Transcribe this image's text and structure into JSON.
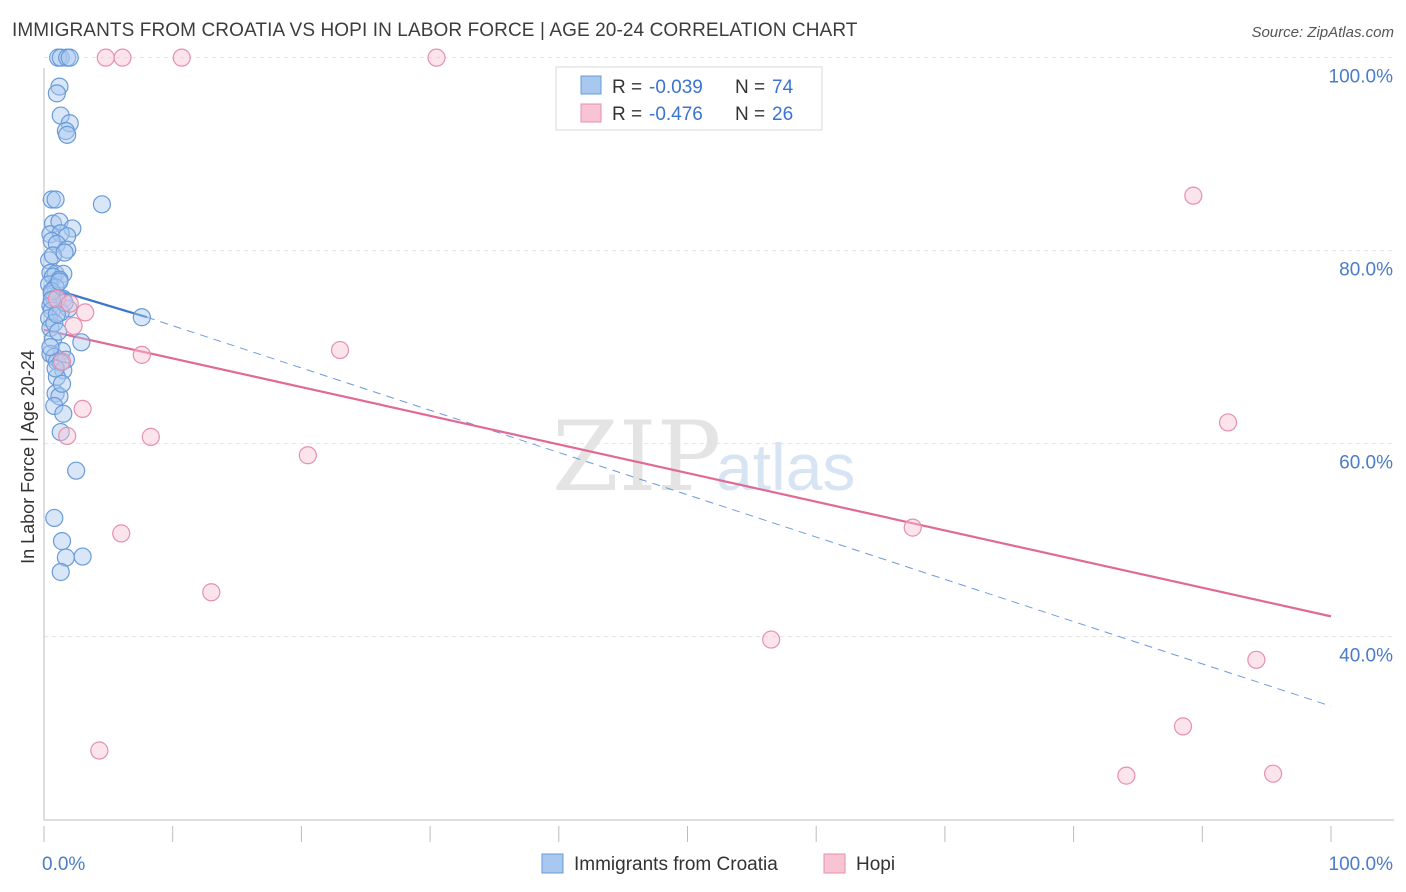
{
  "title": "IMMIGRANTS FROM CROATIA VS HOPI IN LABOR FORCE | AGE 20-24 CORRELATION CHART",
  "source": "Source: ZipAtlas.com",
  "watermark": {
    "zip": "ZIP",
    "atlas": "atlas"
  },
  "legend": {
    "r_label": "R =",
    "n_label": "N =",
    "rows": [
      {
        "r": "-0.039",
        "n": "74",
        "color": "#a8c8f0",
        "stroke": "#6a9bd8"
      },
      {
        "r": "-0.476",
        "n": "26",
        "color": "#f8c4d4",
        "stroke": "#e690ac"
      }
    ]
  },
  "bottom_legend": [
    {
      "label": "Immigrants from Croatia",
      "color": "#a8c8f0",
      "stroke": "#6a9bd8"
    },
    {
      "label": "Hopi",
      "color": "#f8c4d4",
      "stroke": "#e690ac"
    }
  ],
  "chart_data": {
    "type": "scatter",
    "title": "IMMIGRANTS FROM CROATIA VS HOPI IN LABOR FORCE | AGE 20-24 CORRELATION CHART",
    "xlabel": "",
    "ylabel": "In Labor Force | Age 20-24",
    "xlim": [
      0,
      100
    ],
    "ylim": [
      21,
      101
    ],
    "x_tick_labels": [
      {
        "value": 0,
        "label": "0.0%"
      },
      {
        "value": 100,
        "label": "100.0%"
      }
    ],
    "y_tick_labels": [
      {
        "value": 40,
        "label": "40.0%"
      },
      {
        "value": 60,
        "label": "60.0%"
      },
      {
        "value": 80,
        "label": "80.0%"
      },
      {
        "value": 100,
        "label": "100.0%"
      }
    ],
    "grid": true,
    "legend_position": "top-center",
    "series": [
      {
        "name": "Immigrants from Croatia",
        "color": "#a8c8f0",
        "stroke": "#6a9bd8",
        "points": [
          [
            1.1,
            100
          ],
          [
            1.3,
            100
          ],
          [
            1.8,
            100
          ],
          [
            2.0,
            100
          ],
          [
            1.2,
            97
          ],
          [
            1.0,
            96.3
          ],
          [
            1.3,
            94
          ],
          [
            2.0,
            93.2
          ],
          [
            1.7,
            92.4
          ],
          [
            1.8,
            92
          ],
          [
            0.6,
            85.3
          ],
          [
            0.9,
            85.3
          ],
          [
            4.5,
            84.8
          ],
          [
            0.7,
            82.8
          ],
          [
            1.2,
            83
          ],
          [
            2.2,
            82.3
          ],
          [
            0.5,
            81.7
          ],
          [
            1.3,
            81.8
          ],
          [
            1.8,
            81.5
          ],
          [
            0.6,
            81
          ],
          [
            1.0,
            80.7
          ],
          [
            1.8,
            80.1
          ],
          [
            0.4,
            79
          ],
          [
            0.5,
            77.7
          ],
          [
            0.9,
            77.6
          ],
          [
            1.5,
            77.6
          ],
          [
            0.7,
            77.3
          ],
          [
            1.2,
            77
          ],
          [
            0.4,
            76.5
          ],
          [
            0.9,
            76.2
          ],
          [
            0.6,
            75.5
          ],
          [
            0.8,
            75
          ],
          [
            1.0,
            75
          ],
          [
            1.5,
            75
          ],
          [
            0.5,
            74.3
          ],
          [
            1.9,
            74
          ],
          [
            0.6,
            73.8
          ],
          [
            1.3,
            73.6
          ],
          [
            7.6,
            73.1
          ],
          [
            0.4,
            73
          ],
          [
            0.5,
            72
          ],
          [
            0.7,
            70.8
          ],
          [
            2.9,
            70.5
          ],
          [
            1.4,
            69.6
          ],
          [
            0.5,
            69.3
          ],
          [
            0.8,
            69
          ],
          [
            1.0,
            68.5
          ],
          [
            1.7,
            68.7
          ],
          [
            1.3,
            68.4
          ],
          [
            1.5,
            67.6
          ],
          [
            1.0,
            66.9
          ],
          [
            0.9,
            65.2
          ],
          [
            1.2,
            64.9
          ],
          [
            0.8,
            63.9
          ],
          [
            1.5,
            63.1
          ],
          [
            1.3,
            61.2
          ],
          [
            2.5,
            57.2
          ],
          [
            0.8,
            52.3
          ],
          [
            1.4,
            49.9
          ],
          [
            3.0,
            48.3
          ],
          [
            1.7,
            48.2
          ],
          [
            1.3,
            46.7
          ],
          [
            0.6,
            75.8
          ],
          [
            1.2,
            76.8
          ],
          [
            0.8,
            72.5
          ],
          [
            1.6,
            74.6
          ],
          [
            0.5,
            70
          ],
          [
            1.1,
            71.6
          ],
          [
            0.9,
            67.8
          ],
          [
            1.4,
            66.2
          ],
          [
            0.7,
            79.5
          ],
          [
            1.6,
            79.8
          ],
          [
            0.6,
            74.9
          ],
          [
            1.0,
            73.4
          ]
        ]
      },
      {
        "name": "Hopi",
        "color": "#f8c4d4",
        "stroke": "#e690ac",
        "points": [
          [
            4.8,
            100
          ],
          [
            6.1,
            100
          ],
          [
            10.7,
            100
          ],
          [
            30.5,
            100
          ],
          [
            89.3,
            85.7
          ],
          [
            3.2,
            73.6
          ],
          [
            2.3,
            72.2
          ],
          [
            23.0,
            69.7
          ],
          [
            7.6,
            69.2
          ],
          [
            1.4,
            68.5
          ],
          [
            3.0,
            63.6
          ],
          [
            1.8,
            60.8
          ],
          [
            8.3,
            60.7
          ],
          [
            20.5,
            58.8
          ],
          [
            92.0,
            62.2
          ],
          [
            6.0,
            50.7
          ],
          [
            67.5,
            51.3
          ],
          [
            13.0,
            44.6
          ],
          [
            56.5,
            39.7
          ],
          [
            94.2,
            37.6
          ],
          [
            4.3,
            28.2
          ],
          [
            88.5,
            30.7
          ],
          [
            84.1,
            25.6
          ],
          [
            95.5,
            25.8
          ],
          [
            1.0,
            75
          ],
          [
            2.0,
            74.5
          ]
        ]
      }
    ],
    "trendlines": [
      {
        "series": "Immigrants from Croatia",
        "style": "solid",
        "x": [
          0,
          8
        ],
        "y": [
          76.3,
          73.1
        ]
      },
      {
        "series": "Immigrants from Croatia",
        "style": "dashed",
        "x": [
          8,
          100
        ],
        "y": [
          73.1,
          32.8
        ]
      },
      {
        "series": "Hopi",
        "style": "solid",
        "x": [
          0,
          100
        ],
        "y": [
          71.8,
          42.1
        ]
      }
    ]
  }
}
